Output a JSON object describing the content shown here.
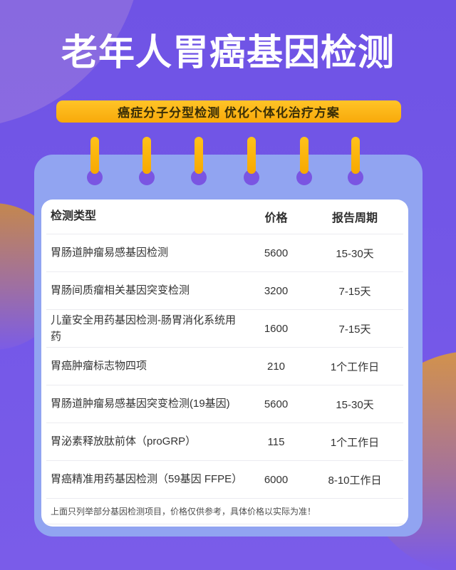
{
  "header": {
    "title": "老年人胃癌基因检测",
    "subtitle": "癌症分子分型检测 优化个体化治疗方案"
  },
  "table": {
    "columns": [
      "检测类型",
      "价格",
      "报告周期"
    ],
    "rows": [
      {
        "name": "胃肠道肿瘤易感基因检测",
        "price": "5600",
        "period": "15-30天"
      },
      {
        "name": "胃肠间质瘤相关基因突变检测",
        "price": "3200",
        "period": "7-15天"
      },
      {
        "name": "儿童安全用药基因检测-肠胃消化系统用药",
        "price": "1600",
        "period": "7-15天"
      },
      {
        "name": "胃癌肿瘤标志物四项",
        "price": "210",
        "period": "1个工作日"
      },
      {
        "name": "胃肠道肿瘤易感基因突变检测(19基因)",
        "price": "5600",
        "period": "15-30天"
      },
      {
        "name": "胃泌素释放肽前体（proGRP）",
        "price": "115",
        "period": "1个工作日"
      },
      {
        "name": "胃癌精准用药基因检测（59基因 FFPE）",
        "price": "6000",
        "period": "8-10工作日"
      }
    ],
    "note": "上面只列举部分基因检测项目，价格仅供参考，具体价格以实际为准！"
  },
  "colors": {
    "background_purple": "#7357E7",
    "notepad_periwinkle": "#91A4F1",
    "accent_yellow": "#FCB514",
    "pin_dot_purple": "#7A55E2",
    "title_text": "#FFFFFF",
    "banner_text": "#3A2E07",
    "table_text": "#333333",
    "decor_orange": "#D2924C"
  }
}
